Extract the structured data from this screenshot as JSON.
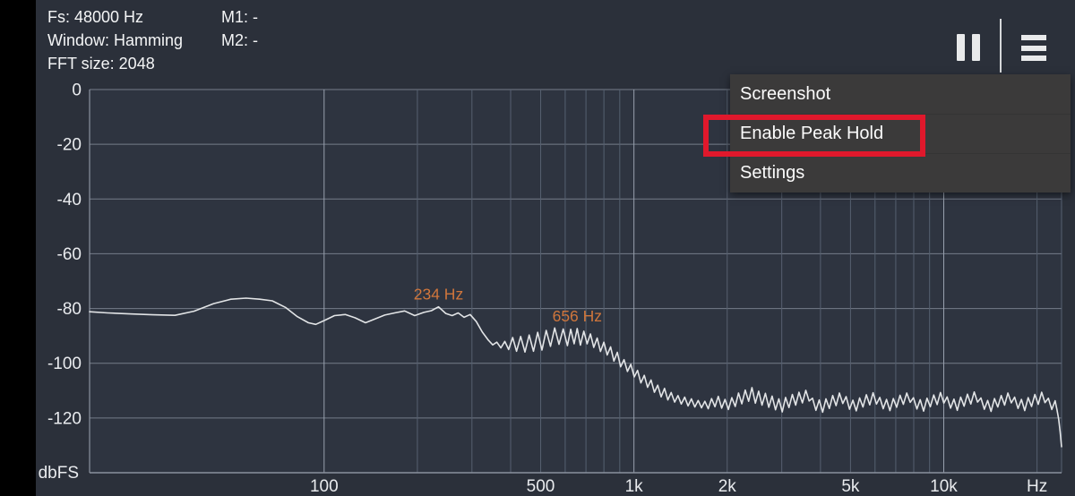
{
  "toolbar": {
    "fs": "Fs: 48000 Hz",
    "window": "Window: Hamming",
    "fft": "FFT size: 2048",
    "m1": "M1: -",
    "m2": "M2: -",
    "pause_icon": "pause-icon",
    "menu_icon": "hamburger-menu-icon"
  },
  "menu": {
    "items": [
      {
        "label": "Screenshot"
      },
      {
        "label": "Enable Peak Hold",
        "highlighted": true
      },
      {
        "label": "Settings"
      }
    ],
    "highlight_color": "#e0182c"
  },
  "chart_data": {
    "type": "line",
    "title": "",
    "xlabel": "Hz",
    "ylabel": "dbFS",
    "x_scale": "log",
    "x_range": [
      17.5,
      24000
    ],
    "y_range": [
      -140,
      0
    ],
    "grid": true,
    "legend": "none",
    "y_ticks": [
      {
        "db": 0,
        "label": "0"
      },
      {
        "db": -20,
        "label": "-20"
      },
      {
        "db": -40,
        "label": "-40"
      },
      {
        "db": -60,
        "label": "-60"
      },
      {
        "db": -80,
        "label": "-80"
      },
      {
        "db": -100,
        "label": "-100"
      },
      {
        "db": -120,
        "label": "-120"
      }
    ],
    "y_unit_label": "dbFS",
    "x_gridlines": [
      100,
      200,
      300,
      400,
      500,
      600,
      700,
      800,
      900,
      1000,
      2000,
      3000,
      4000,
      5000,
      6000,
      7000,
      8000,
      9000,
      10000,
      20000
    ],
    "x_major": [
      100,
      1000,
      10000
    ],
    "x_ticks": [
      {
        "f": 100,
        "label": "100"
      },
      {
        "f": 500,
        "label": "500"
      },
      {
        "f": 1000,
        "label": "1k"
      },
      {
        "f": 2000,
        "label": "2k"
      },
      {
        "f": 5000,
        "label": "5k"
      },
      {
        "f": 10000,
        "label": "10k"
      },
      {
        "f": 20000,
        "label": "Hz"
      }
    ],
    "markers": [
      {
        "label": "234 Hz",
        "f": 234,
        "db": -79.4
      },
      {
        "label": "656 Hz",
        "f": 656,
        "db": -87.3
      }
    ],
    "colors": {
      "outer_bg": "#2b303a",
      "plot_bg": "#2e3440",
      "grid_h": "#757c89",
      "grid_v_minor": "#566070",
      "grid_v_major": "#99a1ae",
      "axis_border": "#8a919e",
      "trace": "#e2e4e6",
      "tick_text": "#e9ebee",
      "marker_text": "#d0763c"
    },
    "series": [
      {
        "name": "spectrum",
        "points": [
          [
            17.5,
            -81.2
          ],
          [
            20,
            -81.6
          ],
          [
            24,
            -82.0
          ],
          [
            28,
            -82.3
          ],
          [
            33,
            -82.5
          ],
          [
            38,
            -81.0
          ],
          [
            44,
            -78.2
          ],
          [
            50,
            -76.6
          ],
          [
            56,
            -76.2
          ],
          [
            62,
            -76.6
          ],
          [
            68,
            -77.2
          ],
          [
            75,
            -79.6
          ],
          [
            82,
            -83.0
          ],
          [
            89,
            -85.2
          ],
          [
            94,
            -85.8
          ],
          [
            101,
            -84.2
          ],
          [
            108,
            -82.6
          ],
          [
            117,
            -82.2
          ],
          [
            126,
            -83.4
          ],
          [
            136,
            -85.2
          ],
          [
            146,
            -83.8
          ],
          [
            157,
            -82.4
          ],
          [
            169,
            -81.6
          ],
          [
            182,
            -80.9
          ],
          [
            196,
            -82.6
          ],
          [
            210,
            -81.4
          ],
          [
            222,
            -80.8
          ],
          [
            234,
            -79.4
          ],
          [
            247,
            -81.8
          ],
          [
            259,
            -82.6
          ],
          [
            271,
            -81.6
          ],
          [
            283,
            -83.2
          ],
          [
            296,
            -82.2
          ],
          [
            310,
            -84.8
          ],
          [
            324,
            -88.6
          ],
          [
            338,
            -91.4
          ],
          [
            350,
            -93.3
          ],
          [
            361,
            -92.3
          ],
          [
            372,
            -94.4
          ],
          [
            383,
            -92.0
          ],
          [
            394,
            -95.0
          ],
          [
            406,
            -90.6
          ],
          [
            418,
            -95.6
          ],
          [
            431,
            -90.2
          ],
          [
            445,
            -95.9
          ],
          [
            459,
            -89.7
          ],
          [
            474,
            -95.6
          ],
          [
            489,
            -88.7
          ],
          [
            505,
            -95.2
          ],
          [
            521,
            -88.0
          ],
          [
            538,
            -93.8
          ],
          [
            555,
            -87.1
          ],
          [
            573,
            -93.1
          ],
          [
            591,
            -87.5
          ],
          [
            610,
            -93.6
          ],
          [
            625,
            -87.6
          ],
          [
            641,
            -92.9
          ],
          [
            656,
            -87.3
          ],
          [
            672,
            -93.4
          ],
          [
            689,
            -88.3
          ],
          [
            706,
            -92.9
          ],
          [
            724,
            -89.3
          ],
          [
            742,
            -94.2
          ],
          [
            761,
            -90.8
          ],
          [
            780,
            -95.7
          ],
          [
            800,
            -92.3
          ],
          [
            820,
            -97.0
          ],
          [
            841,
            -94.0
          ],
          [
            862,
            -99.2
          ],
          [
            884,
            -96.0
          ],
          [
            906,
            -101.3
          ],
          [
            929,
            -98.7
          ],
          [
            953,
            -103.0
          ],
          [
            977,
            -100.4
          ],
          [
            1002,
            -105.0
          ],
          [
            1027,
            -102.6
          ],
          [
            1053,
            -107.2
          ],
          [
            1080,
            -104.4
          ],
          [
            1107,
            -108.8
          ],
          [
            1135,
            -106.1
          ],
          [
            1164,
            -110.6
          ],
          [
            1193,
            -108.0
          ],
          [
            1224,
            -112.3
          ],
          [
            1255,
            -109.2
          ],
          [
            1287,
            -113.4
          ],
          [
            1319,
            -110.7
          ],
          [
            1353,
            -114.2
          ],
          [
            1387,
            -111.8
          ],
          [
            1422,
            -114.9
          ],
          [
            1458,
            -112.4
          ],
          [
            1495,
            -115.6
          ],
          [
            1533,
            -113.0
          ],
          [
            1572,
            -116.0
          ],
          [
            1612,
            -113.6
          ],
          [
            1653,
            -116.3
          ],
          [
            1694,
            -113.9
          ],
          [
            1737,
            -116.6
          ],
          [
            1781,
            -112.9
          ],
          [
            1826,
            -115.9
          ],
          [
            1872,
            -112.1
          ],
          [
            1920,
            -116.4
          ],
          [
            1968,
            -113.2
          ],
          [
            2018,
            -116.9
          ],
          [
            2069,
            -112.6
          ],
          [
            2122,
            -115.8
          ],
          [
            2175,
            -110.9
          ],
          [
            2230,
            -114.8
          ],
          [
            2287,
            -109.8
          ],
          [
            2345,
            -113.9
          ],
          [
            2404,
            -108.9
          ],
          [
            2465,
            -114.6
          ],
          [
            2527,
            -110.2
          ],
          [
            2591,
            -115.3
          ],
          [
            2657,
            -111.0
          ],
          [
            2724,
            -116.1
          ],
          [
            2793,
            -112.0
          ],
          [
            2864,
            -117.0
          ],
          [
            2936,
            -113.0
          ],
          [
            3010,
            -117.8
          ],
          [
            3086,
            -112.5
          ],
          [
            3165,
            -116.2
          ],
          [
            3245,
            -111.4
          ],
          [
            3327,
            -115.3
          ],
          [
            3411,
            -110.6
          ],
          [
            3497,
            -114.5
          ],
          [
            3586,
            -109.9
          ],
          [
            3677,
            -113.8
          ],
          [
            3770,
            -112.8
          ],
          [
            3866,
            -117.2
          ],
          [
            3964,
            -113.4
          ],
          [
            4064,
            -117.9
          ],
          [
            4167,
            -113.0
          ],
          [
            4272,
            -116.5
          ],
          [
            4380,
            -111.8
          ],
          [
            4491,
            -115.5
          ],
          [
            4605,
            -110.9
          ],
          [
            4722,
            -114.7
          ],
          [
            4841,
            -112.2
          ],
          [
            4964,
            -116.8
          ],
          [
            5090,
            -113.5
          ],
          [
            5219,
            -117.4
          ],
          [
            5351,
            -112.7
          ],
          [
            5486,
            -116.0
          ],
          [
            5625,
            -111.5
          ],
          [
            5768,
            -115.2
          ],
          [
            5914,
            -110.8
          ],
          [
            6064,
            -114.9
          ],
          [
            6217,
            -112.5
          ],
          [
            6375,
            -116.6
          ],
          [
            6536,
            -113.2
          ],
          [
            6702,
            -117.3
          ],
          [
            6872,
            -112.9
          ],
          [
            7046,
            -116.1
          ],
          [
            7225,
            -111.7
          ],
          [
            7408,
            -115.0
          ],
          [
            7596,
            -110.9
          ],
          [
            7788,
            -114.3
          ],
          [
            7986,
            -112.6
          ],
          [
            8188,
            -116.7
          ],
          [
            8396,
            -113.3
          ],
          [
            8609,
            -117.5
          ],
          [
            8827,
            -112.8
          ],
          [
            9051,
            -115.9
          ],
          [
            9281,
            -111.6
          ],
          [
            9516,
            -115.1
          ],
          [
            9758,
            -110.7
          ],
          [
            10005,
            -114.6
          ],
          [
            10259,
            -112.3
          ],
          [
            10520,
            -116.4
          ],
          [
            10787,
            -113.1
          ],
          [
            11060,
            -117.2
          ],
          [
            11341,
            -112.4
          ],
          [
            11629,
            -115.7
          ],
          [
            11924,
            -111.3
          ],
          [
            12226,
            -114.9
          ],
          [
            12537,
            -110.5
          ],
          [
            12855,
            -114.2
          ],
          [
            13181,
            -112.7
          ],
          [
            13516,
            -116.8
          ],
          [
            13859,
            -113.6
          ],
          [
            14211,
            -117.6
          ],
          [
            14572,
            -112.9
          ],
          [
            14942,
            -116.0
          ],
          [
            15321,
            -111.8
          ],
          [
            15710,
            -115.3
          ],
          [
            16109,
            -110.9
          ],
          [
            16518,
            -114.5
          ],
          [
            16937,
            -112.4
          ],
          [
            17367,
            -116.5
          ],
          [
            17808,
            -113.2
          ],
          [
            18260,
            -117.3
          ],
          [
            18724,
            -112.6
          ],
          [
            19199,
            -115.8
          ],
          [
            19687,
            -111.4
          ],
          [
            20187,
            -115.0
          ],
          [
            20699,
            -110.6
          ],
          [
            21225,
            -114.4
          ],
          [
            21764,
            -112.8
          ],
          [
            22317,
            -116.9
          ],
          [
            22883,
            -113.7
          ],
          [
            23200,
            -117.0
          ],
          [
            23500,
            -120.5
          ],
          [
            23750,
            -125.0
          ],
          [
            24000,
            -130.5
          ]
        ]
      }
    ]
  }
}
